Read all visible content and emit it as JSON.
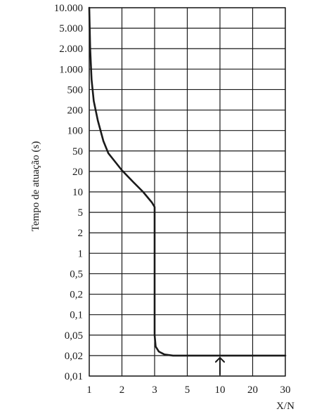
{
  "chart_data": {
    "type": "line",
    "title": "",
    "xlabel": "X/N",
    "ylabel": "Tempo de atuação (s)",
    "xscale": "log",
    "yscale": "log",
    "xlim": [
      1,
      30
    ],
    "ylim": [
      0.01,
      10000
    ],
    "grid": true,
    "x_ticks": [
      1,
      2,
      3,
      5,
      10,
      20,
      30
    ],
    "x_tick_labels": [
      "1",
      "2",
      "3",
      "5",
      "10",
      "20",
      "30"
    ],
    "y_ticks": [
      0.01,
      0.02,
      0.05,
      0.1,
      0.2,
      0.5,
      1,
      2,
      5,
      10,
      20,
      50,
      100,
      200,
      500,
      1000,
      2000,
      5000,
      10000
    ],
    "y_tick_labels": [
      "0,01",
      "0,02",
      "0,05",
      "0,1",
      "0,2",
      "0,5",
      "1",
      "2",
      "5",
      "10",
      "20",
      "50",
      "100",
      "200",
      "500",
      "1.000",
      "2.000",
      "5.000",
      "10.000"
    ],
    "series": [
      {
        "x": [
          1.0,
          1.02,
          1.05,
          1.1,
          1.2,
          1.35,
          1.5,
          1.75,
          2.0,
          2.3,
          2.6,
          2.9,
          3.0,
          3.0,
          3.0,
          3.05,
          3.2,
          3.5,
          4.0,
          4.5,
          5.0,
          7.0,
          10.0,
          20.0,
          30.0
        ],
        "y": [
          10000,
          2000,
          700,
          300,
          140,
          70,
          45,
          30,
          21,
          14,
          10,
          7,
          6,
          1,
          0.05,
          0.03,
          0.024,
          0.021,
          0.02,
          0.02,
          0.02,
          0.02,
          0.02,
          0.02,
          0.02
        ]
      }
    ],
    "annotations": [
      {
        "type": "arrow",
        "x": 10,
        "y": 0.02,
        "direction": "up"
      }
    ]
  }
}
